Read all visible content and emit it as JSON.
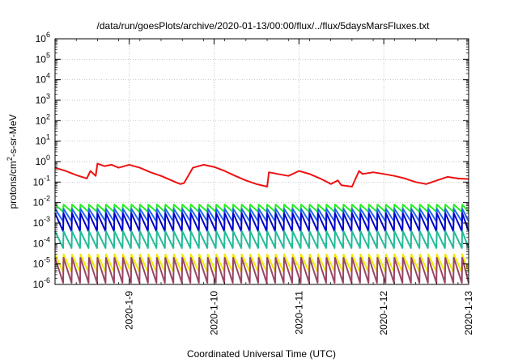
{
  "chart_data": {
    "type": "line",
    "title": "/data/run/goesPlots/archive/2020-01-13/00:00/flux/../flux/5daysMarsFluxes.txt",
    "xlabel": "Coordinated Universal Time (UTC)",
    "ylabel_main": "protons/cm",
    "ylabel_sup": "2",
    "ylabel_tail": "-s-sr-MeV",
    "x_range": [
      "2020-01-08T03:00",
      "2020-01-13T00:00"
    ],
    "x_ticks": [
      "2020-1-9",
      "2020-1-10",
      "2020-1-11",
      "2020-1-12",
      "2020-1-13"
    ],
    "y_scale": "log",
    "y_range": [
      1e-06,
      1000000.0
    ],
    "y_tick_exponents": [
      "-6",
      "-5",
      "-4",
      "-3",
      "-2",
      "-1",
      "0",
      "1",
      "2",
      "3",
      "4",
      "5",
      "6"
    ],
    "y_tick_base": "10",
    "grid": true,
    "legend": "none",
    "series": [
      {
        "color": "#ee1111",
        "x": [
          "2020-01-08T03:00",
          "2020-01-08T06:00",
          "2020-01-08T09:00",
          "2020-01-08T12:00",
          "2020-01-08T13:00",
          "2020-01-08T14:30",
          "2020-01-08T15:00",
          "2020-01-08T17:00",
          "2020-01-08T19:00",
          "2020-01-08T21:00",
          "2020-01-09T00:00",
          "2020-01-09T03:00",
          "2020-01-09T06:00",
          "2020-01-09T09:00",
          "2020-01-09T12:00",
          "2020-01-09T13:00",
          "2020-01-09T14:30",
          "2020-01-09T15:30",
          "2020-01-09T18:00",
          "2020-01-09T21:00",
          "2020-01-10T00:00",
          "2020-01-10T03:00",
          "2020-01-10T06:00",
          "2020-01-10T09:00",
          "2020-01-10T12:00",
          "2020-01-10T15:00",
          "2020-01-10T15:30",
          "2020-01-10T18:00",
          "2020-01-10T21:00",
          "2020-01-11T00:00",
          "2020-01-11T03:00",
          "2020-01-11T06:00",
          "2020-01-11T08:00",
          "2020-01-11T09:00",
          "2020-01-11T11:00",
          "2020-01-11T12:00",
          "2020-01-11T15:00",
          "2020-01-11T17:00",
          "2020-01-11T18:00",
          "2020-01-11T21:00",
          "2020-01-12T00:00",
          "2020-01-12T03:00",
          "2020-01-12T06:00",
          "2020-01-12T09:00",
          "2020-01-12T12:00",
          "2020-01-12T15:00",
          "2020-01-12T18:00",
          "2020-01-12T21:00",
          "2020-01-13T00:00"
        ],
        "y": [
          0.5,
          0.35,
          0.22,
          0.15,
          0.35,
          0.2,
          0.8,
          0.6,
          0.7,
          0.5,
          0.7,
          0.5,
          0.3,
          0.2,
          0.12,
          0.1,
          0.08,
          0.09,
          0.5,
          0.7,
          0.55,
          0.35,
          0.2,
          0.12,
          0.08,
          0.06,
          0.3,
          0.25,
          0.2,
          0.35,
          0.25,
          0.15,
          0.1,
          0.08,
          0.12,
          0.07,
          0.06,
          0.35,
          0.25,
          0.3,
          0.25,
          0.2,
          0.15,
          0.1,
          0.08,
          0.12,
          0.18,
          0.15,
          0.14
        ]
      }
    ],
    "band_series": [
      {
        "color": "#22ee22",
        "cycle_hours": 2.4,
        "y_low": 0.0035,
        "y_high": 0.008
      },
      {
        "color": "#2266ee",
        "cycle_hours": 2.4,
        "y_low": 0.0012,
        "y_high": 0.005
      },
      {
        "color": "#0000cc",
        "cycle_hours": 2.4,
        "y_low": 0.0004,
        "y_high": 0.003
      },
      {
        "color": "#22bb99",
        "cycle_hours": 2.4,
        "y_low": 6e-05,
        "y_high": 0.0004
      },
      {
        "color": "#eeee00",
        "cycle_hours": 2.4,
        "y_low": 4e-06,
        "y_high": 3e-05
      },
      {
        "color": "#994466",
        "cycle_hours": 2.4,
        "y_low": 1.2e-06,
        "y_high": 2e-05
      }
    ]
  }
}
